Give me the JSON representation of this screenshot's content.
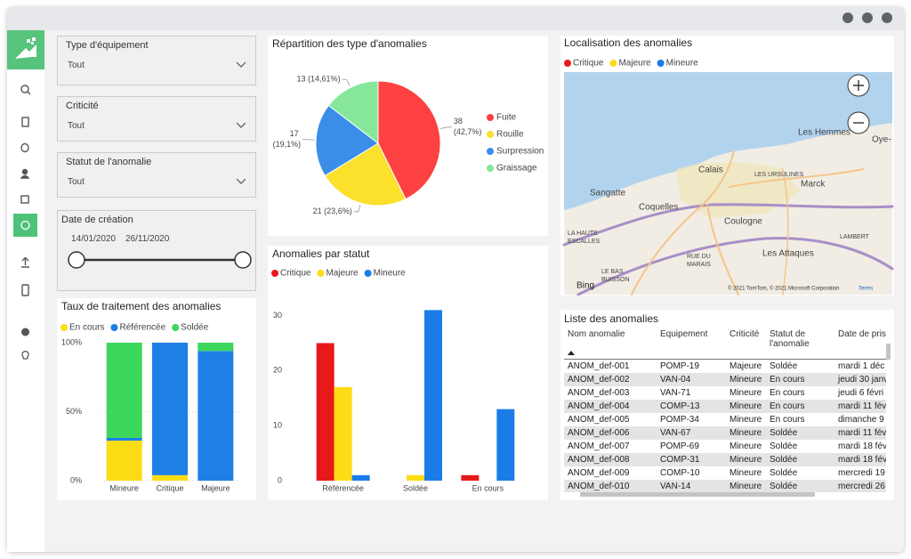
{
  "filters": [
    {
      "label": "Type d'équipement",
      "value": "Tout"
    },
    {
      "label": "Criticité",
      "value": "Tout"
    },
    {
      "label": "Statut de l'anomalie",
      "value": "Tout"
    }
  ],
  "date_filter": {
    "label": "Date de création",
    "start": "14/01/2020",
    "end": "26/11/2020"
  },
  "chart_data": [
    {
      "type": "bar",
      "stacked": true,
      "title": "Taux de traitement des anomalies",
      "categories": [
        "Mineure",
        "Critique",
        "Majeure"
      ],
      "series": [
        {
          "name": "En cours",
          "color": "#fcdc14",
          "values": [
            29,
            4,
            0
          ]
        },
        {
          "name": "Référencée",
          "color": "#1e7fe6",
          "values": [
            2,
            96,
            94
          ]
        },
        {
          "name": "Soldée",
          "color": "#3bd65c",
          "values": [
            69,
            0,
            6
          ]
        }
      ],
      "ylim": [
        0,
        100
      ],
      "yticks": [
        {
          "value": 0,
          "label": "0%"
        },
        {
          "value": 50,
          "label": "50%"
        },
        {
          "value": 100,
          "label": "100%"
        }
      ],
      "grid": true,
      "legend": "top-left"
    },
    {
      "type": "pie",
      "title": "Répartition des type d'anomalies",
      "categories": [
        "Fuite",
        "Rouille",
        "Surpression",
        "Graissage"
      ],
      "values": [
        38,
        21,
        17,
        13
      ],
      "value_labels": [
        "38 (42,7%)",
        "21 (23,6%)",
        "17 (19,1%)",
        "13 (14,61%)"
      ],
      "colors": [
        "#fd4040",
        "#fbe02c",
        "#3b8ee8",
        "#86e79b"
      ],
      "legend": "right"
    },
    {
      "type": "bar",
      "stacked": false,
      "title": "Anomalies par statut",
      "categories": [
        "Référencée",
        "Soldée",
        "En cours"
      ],
      "series": [
        {
          "name": "Critique",
          "color": "#e8191b",
          "values": [
            25,
            0,
            1
          ]
        },
        {
          "name": "Majeure",
          "color": "#fcdc14",
          "values": [
            17,
            1,
            0
          ]
        },
        {
          "name": "Mineure",
          "color": "#1a7ce8",
          "values": [
            1,
            31,
            13
          ]
        }
      ],
      "ylim": [
        0,
        33
      ],
      "yticks": [
        0,
        10,
        20,
        30
      ],
      "grid": false,
      "legend": "top-left"
    }
  ],
  "map": {
    "title": "Localisation des anomalies",
    "legend": [
      {
        "name": "Critique",
        "color": "#e8191b"
      },
      {
        "name": "Majeure",
        "color": "#fcdc14"
      },
      {
        "name": "Mineure",
        "color": "#1a7ce8"
      }
    ],
    "places": [
      "Les Hemmes",
      "Oye-",
      "Calais",
      "LES URSULINES",
      "Marck",
      "Sangatte",
      "Coquelles",
      "Coulogne",
      "LA HAUTE",
      "ESCALLES",
      "LAMBERT",
      "Les Attaques",
      "RUE DU",
      "MARAIS",
      "LE BAS",
      "BUISSON"
    ],
    "brand": "Bing",
    "attribution": "© 2021 TomTom, © 2021 Microsoft Corporation",
    "terms": "Terms"
  },
  "table": {
    "title": "Liste des anomalies",
    "columns": [
      "Nom anomalie",
      "Equipement",
      "Criticité",
      "Statut de l'anomalie",
      "Date de pris"
    ],
    "rows": [
      [
        "ANOM_def-001",
        "POMP-19",
        "Majeure",
        "Soldée",
        "mardi 1 déc"
      ],
      [
        "ANOM_def-002",
        "VAN-04",
        "Mineure",
        "En cours",
        "jeudi 30 janv"
      ],
      [
        "ANOM_def-003",
        "VAN-71",
        "Mineure",
        "En cours",
        "jeudi 6 févri"
      ],
      [
        "ANOM_def-004",
        "COMP-13",
        "Mineure",
        "En cours",
        "mardi 11 fév"
      ],
      [
        "ANOM_def-005",
        "POMP-34",
        "Mineure",
        "En cours",
        "dimanche 9"
      ],
      [
        "ANOM_def-006",
        "VAN-67",
        "Mineure",
        "Soldée",
        "mardi 11 fév"
      ],
      [
        "ANOM_def-007",
        "POMP-69",
        "Mineure",
        "Soldée",
        "mardi 18 fév"
      ],
      [
        "ANOM_def-008",
        "COMP-31",
        "Mineure",
        "Soldée",
        "mardi 18 fév"
      ],
      [
        "ANOM_def-009",
        "COMP-10",
        "Mineure",
        "Soldée",
        "mercredi 19"
      ],
      [
        "ANOM_def-010",
        "VAN-14",
        "Mineure",
        "Soldée",
        "mercredi 26"
      ]
    ]
  }
}
